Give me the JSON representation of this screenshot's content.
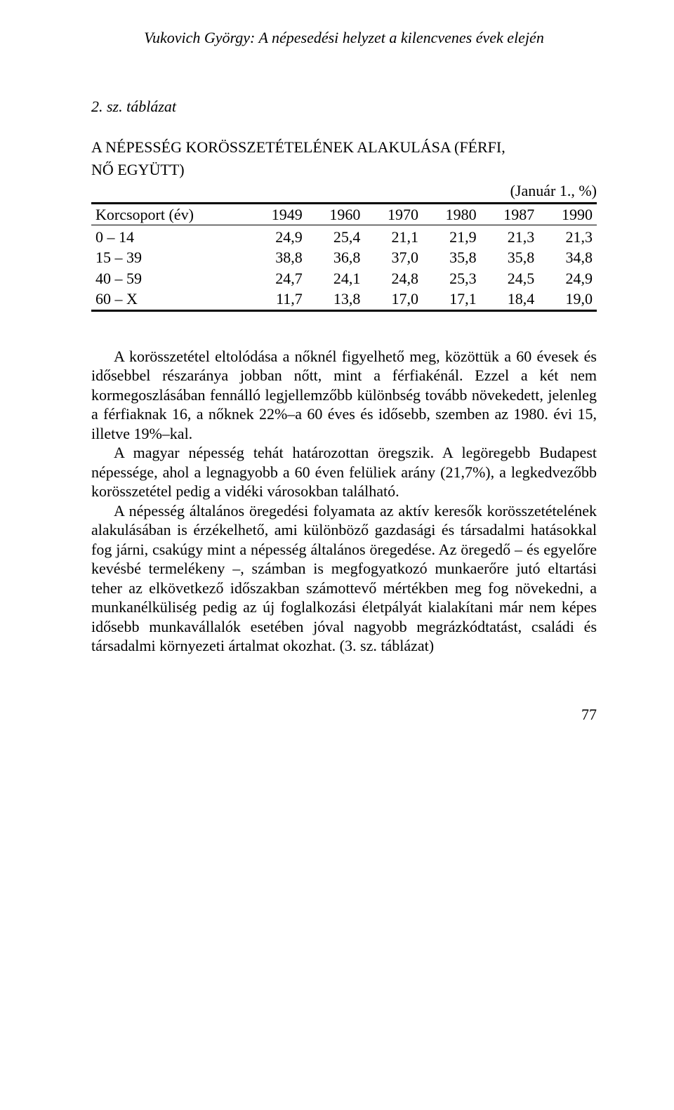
{
  "runningHead": "Vukovich György: A népesedési helyzet a kilencvenes évek elején",
  "tableNumber": "2. sz. táblázat",
  "tableTitle1": "A NÉPESSÉG KORÖSSZETÉTELÉNEK ALAKULÁSA (FÉRFI,",
  "tableTitle2": "NŐ EGYÜTT)",
  "unitLabel": "(Január 1., %)",
  "table": {
    "type": "table",
    "columns": [
      "Korcsoport (év)",
      "1949",
      "1960",
      "1970",
      "1980",
      "1987",
      "1990"
    ],
    "rows": [
      [
        "0 – 14",
        "24,9",
        "25,4",
        "21,1",
        "21,9",
        "21,3",
        "21,3"
      ],
      [
        "15 – 39",
        "38,8",
        "36,8",
        "37,0",
        "35,8",
        "35,8",
        "34,8"
      ],
      [
        "40 – 59",
        "24,7",
        "24,1",
        "24,8",
        "25,3",
        "24,5",
        "24,9"
      ],
      [
        "60 – X",
        "11,7",
        "13,8",
        "17,0",
        "17,1",
        "18,4",
        "19,0"
      ]
    ],
    "border_color": "#000000",
    "background_color": "#ffffff",
    "fontsize": 22,
    "col_align": [
      "left",
      "right",
      "right",
      "right",
      "right",
      "right",
      "right"
    ]
  },
  "paragraphs": [
    "A korösszetétel eltolódása a nőknél figyelhető meg, közöttük a 60 évesek és idősebbel részaránya jobban nőtt, mint a férfiakénál. Ezzel a két nem kormegoszlásában fennálló legjellemzőbb különbség tovább növekedett, jelenleg a férfiaknak 16, a nőknek 22%–a 60 éves és idősebb, szemben az 1980. évi 15, illetve 19%–kal.",
    "A magyar népesség tehát határozottan öregszik. A legöregebb Budapest népessége, ahol a legnagyobb a 60 éven felüliek arány (21,7%), a legkedvezőbb korösszetétel pedig a vidéki városokban található.",
    "A népesség általános öregedési folyamata az aktív keresők korösszetételének alakulásában is érzékelhető, ami különböző gazdasági és társadalmi hatásokkal fog járni, csakúgy mint a népesség általános öregedése. Az öregedő – és egyelőre kevésbé termelékeny –, számban is megfogyatkozó munkaerőre jutó eltartási teher az elkövetkező időszakban számottevő mértékben meg fog növekedni, a munkanélküliség pedig az új foglalkozási életpályát kialakítani már nem képes idősebb munkavállalók esetében jóval nagyobb megrázkódtatást, családi és társadalmi környezeti ártalmat okozhat. (3. sz. táblázat)"
  ],
  "paragraphIndents": [
    true,
    true,
    true
  ],
  "pageNumber": "77"
}
